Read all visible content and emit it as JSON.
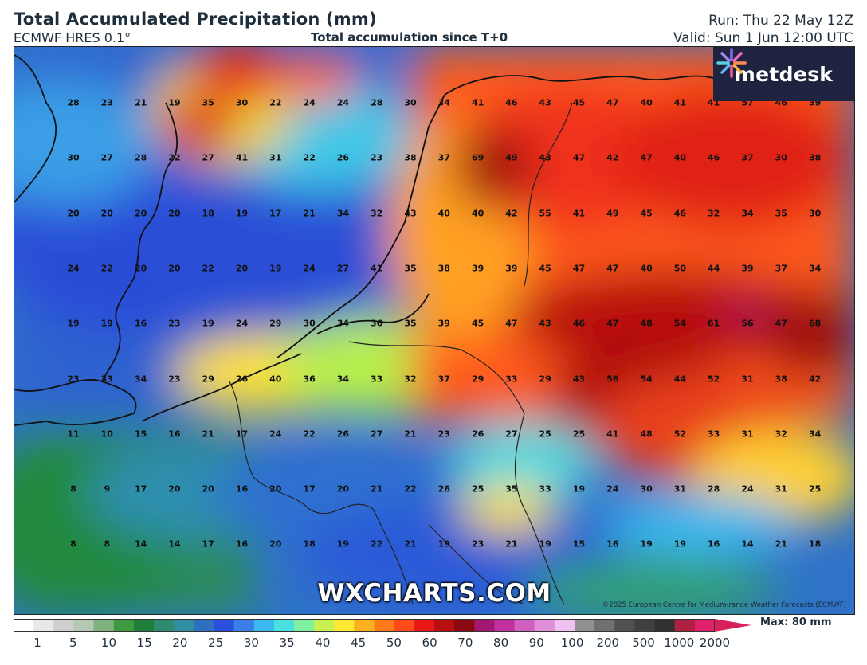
{
  "header": {
    "title": "Total Accumulated Precipitation (mm)",
    "model": "ECMWF HRES 0.1°",
    "subtitle": "Total accumulation since T+0",
    "run": "Run: Thu 22 May 12Z",
    "valid": "Valid: Sun 1 Jun 12:00 UTC"
  },
  "branding": {
    "logo_text": "metdesk",
    "logo_icon": "sparkle-icon",
    "watermark": "WXCHARTS.COM",
    "copyright": "©2025 European Centre for Medium-range Weather Forecasts (ECMWF)"
  },
  "grid_values": [
    [
      28,
      23,
      21,
      19,
      35,
      30,
      22,
      24,
      24,
      28,
      30,
      34,
      41,
      46,
      43,
      45,
      47,
      40,
      41,
      41,
      57,
      46,
      39
    ],
    [
      30,
      27,
      28,
      22,
      27,
      41,
      31,
      22,
      26,
      23,
      38,
      37,
      69,
      49,
      43,
      47,
      42,
      47,
      40,
      46,
      37,
      30,
      38
    ],
    [
      20,
      20,
      20,
      20,
      18,
      19,
      17,
      21,
      34,
      32,
      43,
      40,
      40,
      42,
      55,
      41,
      49,
      45,
      46,
      32,
      34,
      35,
      30
    ],
    [
      24,
      22,
      20,
      20,
      22,
      20,
      19,
      24,
      27,
      41,
      35,
      38,
      39,
      39,
      45,
      47,
      47,
      40,
      50,
      44,
      39,
      37,
      34
    ],
    [
      19,
      19,
      16,
      23,
      19,
      24,
      29,
      30,
      34,
      36,
      35,
      39,
      45,
      47,
      43,
      46,
      47,
      48,
      54,
      61,
      56,
      47,
      68
    ],
    [
      23,
      33,
      34,
      23,
      29,
      26,
      40,
      36,
      34,
      33,
      32,
      37,
      29,
      33,
      29,
      43,
      56,
      54,
      44,
      52,
      31,
      38,
      42
    ],
    [
      11,
      10,
      15,
      16,
      21,
      17,
      24,
      22,
      26,
      27,
      21,
      23,
      26,
      27,
      25,
      25,
      41,
      48,
      52,
      33,
      31,
      32,
      34
    ],
    [
      8,
      9,
      17,
      20,
      20,
      16,
      20,
      17,
      20,
      21,
      22,
      26,
      25,
      35,
      33,
      19,
      24,
      30,
      31,
      28,
      24,
      31,
      25
    ],
    [
      8,
      8,
      14,
      14,
      17,
      16,
      20,
      18,
      19,
      22,
      21,
      19,
      23,
      21,
      19,
      15,
      16,
      19,
      19,
      16,
      14,
      21,
      18
    ]
  ],
  "legend": {
    "ticks": [
      "1",
      "5",
      "10",
      "15",
      "20",
      "25",
      "30",
      "35",
      "40",
      "45",
      "50",
      "60",
      "70",
      "80",
      "90",
      "100",
      "200",
      "500",
      "1000",
      "2000"
    ],
    "max_label": "Max: 80 mm",
    "colors": [
      "#ffffff",
      "#e8e8e8",
      "#cfcfcf",
      "#b4c8b4",
      "#7fb27f",
      "#3e9a3e",
      "#1f7f3a",
      "#2e8a70",
      "#2f8fa0",
      "#2f6fc0",
      "#2a4fd8",
      "#3a7ee8",
      "#3ab8f0",
      "#48e0e0",
      "#7ff0a0",
      "#c8f050",
      "#ffe830",
      "#ffb020",
      "#ff7a1a",
      "#ff4a1a",
      "#e81818",
      "#b81010",
      "#8a0810",
      "#a01870",
      "#c030a0",
      "#d060c0",
      "#e090d8",
      "#f0c0f0",
      "#909090",
      "#707070",
      "#505050",
      "#404040",
      "#303030",
      "#b02040",
      "#e0206a"
    ]
  }
}
